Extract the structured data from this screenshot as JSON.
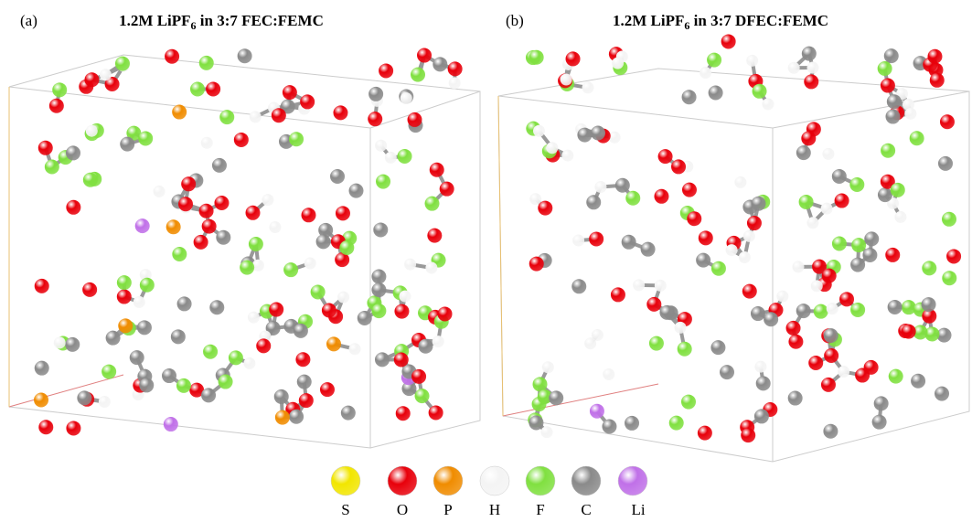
{
  "panels": [
    {
      "label": "(a)",
      "title": {
        "main": "1.2M LiPF",
        "subscript": "6",
        "rest": " in 3:7 FEC:FEMC"
      }
    },
    {
      "label": "(b)",
      "title": {
        "main": "1.2M LiPF",
        "subscript": "6",
        "rest": " in 3:7 DFEC:FEMC"
      }
    }
  ],
  "legend": [
    {
      "label": "S",
      "color": "#f2e600"
    },
    {
      "label": "O",
      "color": "#e8000b"
    },
    {
      "label": "P",
      "color": "#f08c00"
    },
    {
      "label": "H",
      "color": "#f4f4f4"
    },
    {
      "label": "F",
      "color": "#80e040"
    },
    {
      "label": "C",
      "color": "#8a8a8a"
    },
    {
      "label": "Li",
      "color": "#c070e8"
    }
  ]
}
